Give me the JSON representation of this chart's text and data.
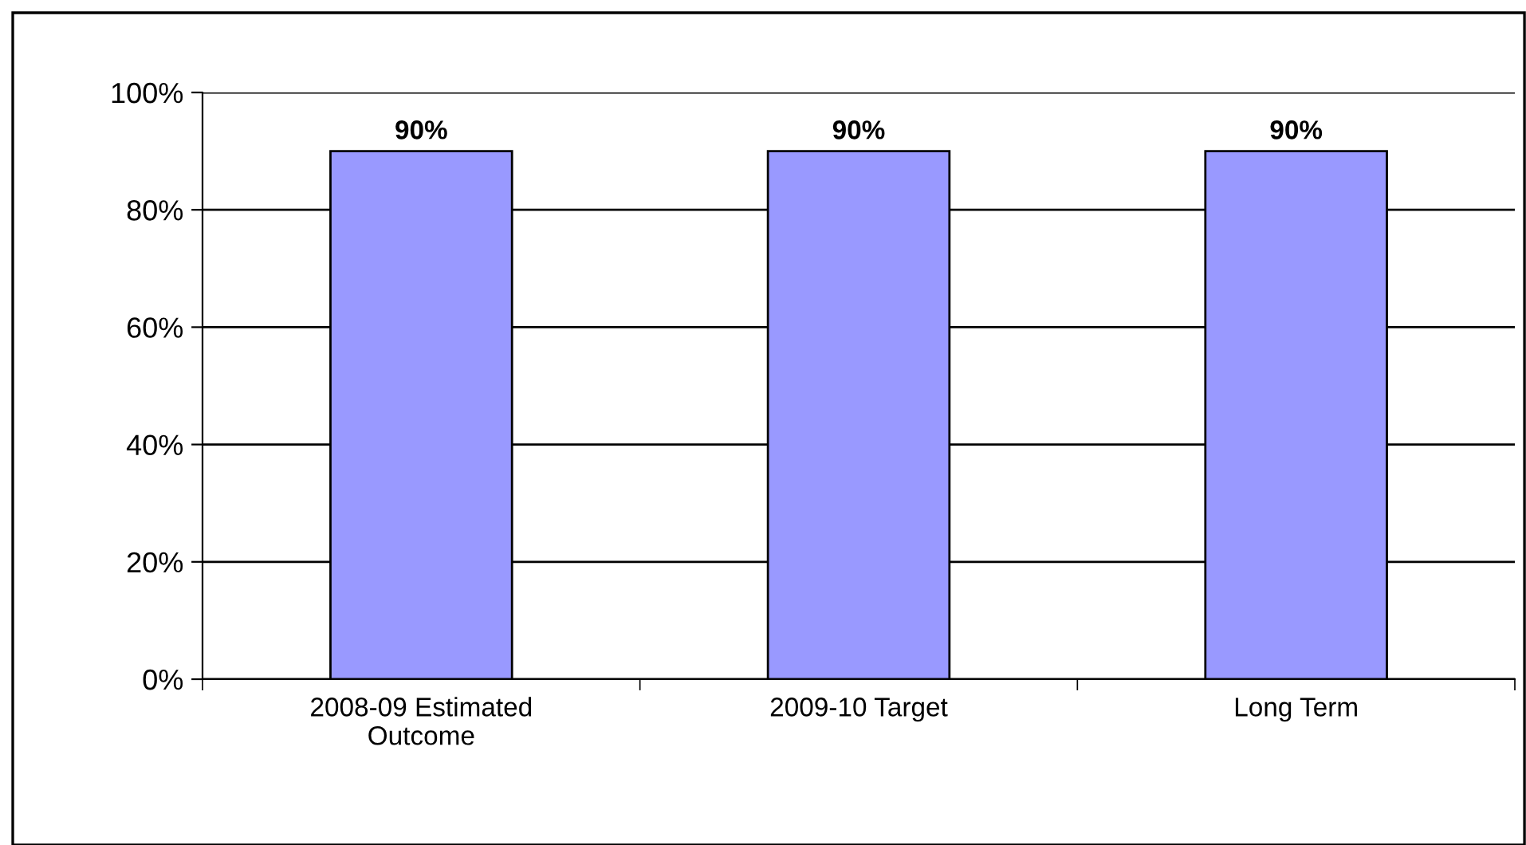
{
  "chart_data": {
    "type": "bar",
    "categories": [
      "2008-09 Estimated Outcome",
      "2009-10 Target",
      "Long Term"
    ],
    "values": [
      90,
      90,
      90
    ],
    "color": "#9999ff",
    "value_labels": [
      "90%",
      "90%",
      "90%"
    ],
    "ylim": [
      0,
      100
    ],
    "yticks": [
      {
        "value": 0,
        "label": "0%"
      },
      {
        "value": 20,
        "label": "20%"
      },
      {
        "value": 40,
        "label": "40%"
      },
      {
        "value": 60,
        "label": "60%"
      },
      {
        "value": 80,
        "label": "80%"
      },
      {
        "value": 100,
        "label": "100%"
      }
    ],
    "grid": "y"
  }
}
